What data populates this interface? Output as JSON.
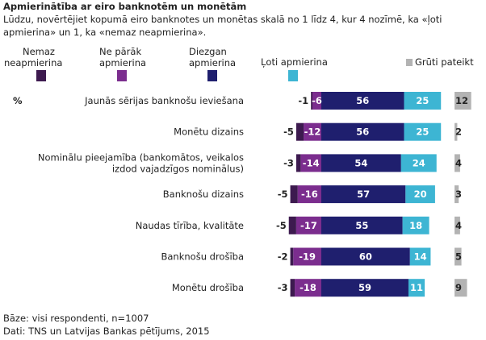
{
  "title": "Apmierinātība ar eiro banknotēm un monētām",
  "subtitle": "Lūdzu, novērtējiet kopumā eiro banknotes un monētas skalā no 1 līdz 4, kur 4 nozīmē, ka «ļoti apmierina» un 1, ka «nemaz neapmierina».",
  "unit_label": "%",
  "footer": {
    "base": "Bāze: visi respondenti, n=1007",
    "source": "Dati: TNS un Latvijas Bankas pētījums, 2015"
  },
  "chart_data": {
    "type": "bar",
    "stacked": "diverging",
    "categories": [
      "Jaunās sērijas banknošu ieviešana",
      "Monētu dizains",
      "Nominālu pieejamība (bankomātos, veikalos izdod vajadzīgos nominālus)",
      "Banknošu dizains",
      "Naudas tīrība, kvalitāte",
      "Banknošu drošība",
      "Monētu drošība"
    ],
    "series": [
      {
        "name": "Nemaz neapmierina",
        "color": "#3d1a4f",
        "values": [
          -1,
          -5,
          -3,
          -5,
          -5,
          -2,
          -3
        ]
      },
      {
        "name": "Ne pārāk apmierina",
        "color": "#7b2d8e",
        "values": [
          -6,
          -12,
          -14,
          -16,
          -17,
          -19,
          -18
        ]
      },
      {
        "name": "Diezgan apmierina",
        "color": "#1f1f6e",
        "values": [
          56,
          56,
          54,
          57,
          55,
          60,
          59
        ]
      },
      {
        "name": "Ļoti apmierina",
        "color": "#3db5d3",
        "values": [
          25,
          25,
          24,
          20,
          18,
          14,
          11
        ]
      },
      {
        "name": "Grūti pateikt",
        "color": "#b3b3b3",
        "values": [
          12,
          2,
          4,
          3,
          4,
          5,
          9
        ]
      }
    ],
    "negative_labels": [
      "-1",
      "-5",
      "-3",
      "-5",
      "-5",
      "-2",
      "-3"
    ],
    "legend_position": "top"
  }
}
